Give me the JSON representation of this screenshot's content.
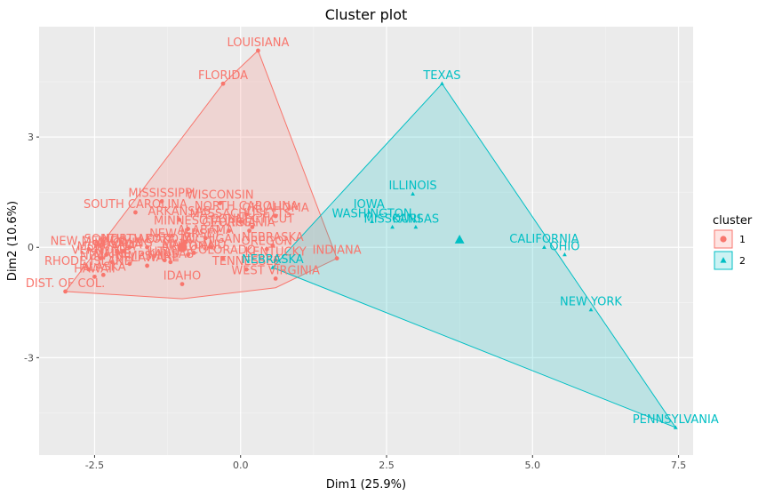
{
  "chart_data": {
    "type": "scatter",
    "title": "Cluster plot",
    "xlabel": "Dim1 (25.9%)",
    "ylabel": "Dim2 (10.6%)",
    "xlim": [
      -3.45,
      7.75
    ],
    "ylim": [
      -5.65,
      6.0
    ],
    "x_ticks": [
      -2.5,
      0.0,
      2.5,
      5.0,
      7.5
    ],
    "x_tick_labels": [
      "-2.5",
      "0.0",
      "2.5",
      "5.0",
      "7.5"
    ],
    "y_ticks": [
      -3,
      0,
      3
    ],
    "y_tick_labels": [
      "-3",
      "0",
      "3"
    ],
    "grid": true,
    "legend": {
      "title": "cluster",
      "placement": "right"
    },
    "series": [
      {
        "name": "1",
        "color": "#F8766D",
        "marker": "circle",
        "centroid": [
          -1.0,
          0.0
        ],
        "hull": [
          [
            0.3,
            5.35
          ],
          [
            -0.3,
            4.45
          ],
          [
            -3.0,
            -1.2
          ],
          [
            -1.0,
            -1.4
          ],
          [
            0.6,
            -1.1
          ],
          [
            1.65,
            -0.3
          ]
        ],
        "points": [
          {
            "label": "LOUISIANA",
            "x": 0.3,
            "y": 5.35
          },
          {
            "label": "FLORIDA",
            "x": -0.3,
            "y": 4.45
          },
          {
            "label": "MISSISSIPPI",
            "x": -1.35,
            "y": 1.25
          },
          {
            "label": "WISCONSIN",
            "x": -0.35,
            "y": 1.2
          },
          {
            "label": "SOUTH CAROLINA",
            "x": -1.8,
            "y": 0.95
          },
          {
            "label": "NORTH CAROLINA",
            "x": 0.1,
            "y": 0.9
          },
          {
            "label": "OKLAHOMA",
            "x": 0.6,
            "y": 0.85
          },
          {
            "label": "ARKANSAS",
            "x": -1.05,
            "y": 0.75
          },
          {
            "label": "MASSACHUSETTS",
            "x": 0.0,
            "y": 0.7
          },
          {
            "label": "CONNECTICUT",
            "x": 0.2,
            "y": 0.55
          },
          {
            "label": "GEORGIA",
            "x": -0.2,
            "y": 0.45
          },
          {
            "label": "VIRGINIA",
            "x": 0.15,
            "y": 0.45
          },
          {
            "label": "MINNESOTA",
            "x": -0.9,
            "y": 0.5
          },
          {
            "label": "ALABAMA",
            "x": -0.6,
            "y": 0.25
          },
          {
            "label": "NEW JERSEY",
            "x": -0.95,
            "y": 0.15
          },
          {
            "label": "MICHIGAN",
            "x": -0.5,
            "y": 0.0
          },
          {
            "label": "NEBRASKA",
            "x": 0.55,
            "y": 0.05
          },
          {
            "label": "OREGON",
            "x": 0.45,
            "y": -0.05
          },
          {
            "label": "INDIANA",
            "x": 1.65,
            "y": -0.3
          },
          {
            "label": "NORTH DAKOTA",
            "x": -1.6,
            "y": 0.0
          },
          {
            "label": "SOUTH DAKOTA",
            "x": -1.9,
            "y": 0.0
          },
          {
            "label": "NEW MEXICO",
            "x": -2.6,
            "y": -0.05
          },
          {
            "label": "COLORADO",
            "x": -0.3,
            "y": -0.3
          },
          {
            "label": "KENTUCKY",
            "x": 0.6,
            "y": -0.35
          },
          {
            "label": "NEW HAMPSHIRE",
            "x": -1.9,
            "y": -0.45
          },
          {
            "label": "MAINE",
            "x": -2.2,
            "y": -0.4
          },
          {
            "label": "TENNESSEE",
            "x": 0.1,
            "y": -0.6
          },
          {
            "label": "WEST VIRGINIA",
            "x": 0.6,
            "y": -0.85
          },
          {
            "label": "IDAHO",
            "x": -1.0,
            "y": -1.0
          },
          {
            "label": "RHODE ISLAND",
            "x": -2.6,
            "y": -0.6
          },
          {
            "label": "DIST. OF COL.",
            "x": -3.0,
            "y": -1.2
          },
          {
            "label": "MONTANA",
            "x": -2.3,
            "y": -0.2
          },
          {
            "label": "NEVADA",
            "x": -2.1,
            "y": -0.15
          },
          {
            "label": "UTAH",
            "x": -1.3,
            "y": -0.35
          },
          {
            "label": "VERMONT",
            "x": -2.4,
            "y": -0.3
          },
          {
            "label": "WYOMING",
            "x": -2.0,
            "y": -0.1
          },
          {
            "label": "DELAWARE",
            "x": -1.6,
            "y": -0.5
          },
          {
            "label": "ARIZONA",
            "x": -0.9,
            "y": -0.2
          },
          {
            "label": "KANSAS",
            "x": -1.2,
            "y": -0.4
          },
          {
            "label": "HAWAII",
            "x": -2.5,
            "y": -0.8
          },
          {
            "label": "ALASKA",
            "x": -2.35,
            "y": -0.75
          },
          {
            "label": "MARYLAND",
            "x": -0.8,
            "y": -0.15
          }
        ]
      },
      {
        "name": "2",
        "color": "#00BFC4",
        "marker": "triangle",
        "centroid": [
          3.75,
          0.2
        ],
        "hull": [
          [
            3.45,
            4.45
          ],
          [
            7.45,
            -4.9
          ],
          [
            0.55,
            -0.55
          ]
        ],
        "points": [
          {
            "label": "TEXAS",
            "x": 3.45,
            "y": 4.45
          },
          {
            "label": "ILLINOIS",
            "x": 2.95,
            "y": 1.45
          },
          {
            "label": "IOWA",
            "x": 2.2,
            "y": 0.95
          },
          {
            "label": "WASHINGTON",
            "x": 2.25,
            "y": 0.7
          },
          {
            "label": "MISSOURI",
            "x": 2.6,
            "y": 0.55
          },
          {
            "label": "KANSAS",
            "x": 3.0,
            "y": 0.55
          },
          {
            "label": "CALIFORNIA",
            "x": 5.2,
            "y": 0.0
          },
          {
            "label": "OHIO",
            "x": 5.55,
            "y": -0.2
          },
          {
            "label": "NEW YORK",
            "x": 6.0,
            "y": -1.7
          },
          {
            "label": "PENNSYLVANIA",
            "x": 7.45,
            "y": -4.9
          },
          {
            "label": "NEBRASKA",
            "x": 0.55,
            "y": -0.55
          }
        ]
      }
    ]
  }
}
